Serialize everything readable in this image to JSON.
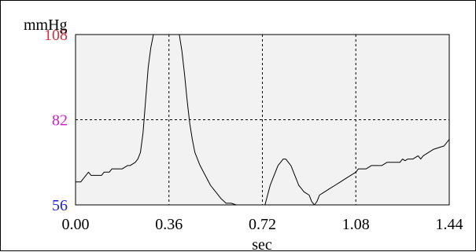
{
  "chart_data": {
    "type": "line",
    "ylabel": "mmHg",
    "xlabel": "sec",
    "xlim": [
      0,
      1.44
    ],
    "ylim": [
      56,
      108
    ],
    "x_ticks": [
      {
        "value": 0,
        "label": "0.00"
      },
      {
        "value": 0.36,
        "label": "0.36"
      },
      {
        "value": 0.72,
        "label": "0.72"
      },
      {
        "value": 1.08,
        "label": "1.08"
      },
      {
        "value": 1.44,
        "label": "1.44"
      }
    ],
    "y_ticks": [
      {
        "value": 56,
        "label": "56",
        "color": "#2020d0"
      },
      {
        "value": 82,
        "label": "82",
        "color": "#d020d0"
      },
      {
        "value": 108,
        "label": "108",
        "color": "#d03040"
      }
    ],
    "grid": true,
    "grid_x": [
      0.36,
      0.72,
      1.08
    ],
    "grid_y": [
      82
    ],
    "colors": {
      "plot_background": "#f2f2f2",
      "line": "#000000",
      "grid": "#000000"
    },
    "series": [
      {
        "x": [
          0.0,
          0.02,
          0.03,
          0.04,
          0.05,
          0.06,
          0.07,
          0.08,
          0.1,
          0.11,
          0.13,
          0.14,
          0.16,
          0.18,
          0.2,
          0.21,
          0.23,
          0.24,
          0.25,
          0.26,
          0.27,
          0.28,
          0.29,
          0.3,
          0.31,
          0.32,
          0.33,
          0.35,
          0.36,
          0.37,
          0.39,
          0.4,
          0.41,
          0.42,
          0.43,
          0.44,
          0.45,
          0.46,
          0.48,
          0.5,
          0.52,
          0.54,
          0.56,
          0.58,
          0.6,
          0.62,
          0.64,
          0.66,
          0.68,
          0.7,
          0.72,
          0.73,
          0.74,
          0.75,
          0.76,
          0.77,
          0.78,
          0.79,
          0.8,
          0.81,
          0.82,
          0.83,
          0.84,
          0.85,
          0.86,
          0.87,
          0.88,
          0.89,
          0.9,
          0.91,
          0.92,
          0.93,
          0.94,
          0.96,
          0.98,
          1.0,
          1.02,
          1.04,
          1.06,
          1.08,
          1.09,
          1.12,
          1.14,
          1.16,
          1.18,
          1.2,
          1.22,
          1.24,
          1.25,
          1.26,
          1.27,
          1.28,
          1.3,
          1.32,
          1.33,
          1.34,
          1.36,
          1.38,
          1.4,
          1.42,
          1.44
        ],
        "y": [
          63.0,
          63.0,
          64.0,
          65.0,
          66.0,
          65.0,
          65.0,
          65.0,
          65.0,
          66.0,
          66.0,
          67.0,
          67.0,
          67.0,
          68.0,
          68.0,
          69.0,
          70.0,
          72.0,
          78.0,
          88.0,
          98.0,
          104.0,
          108.0,
          108.0,
          108.0,
          108.0,
          108.0,
          108.0,
          108.0,
          108.0,
          108.0,
          103.0,
          96.0,
          88.0,
          81.0,
          76.0,
          72.0,
          68.0,
          65.0,
          62.0,
          60.0,
          58.0,
          56.5,
          56.5,
          56.0,
          56.0,
          56.0,
          56.0,
          56.0,
          56.0,
          56.0,
          59.0,
          62.0,
          64.0,
          66.0,
          68.0,
          69.0,
          70.0,
          70.0,
          69.0,
          68.0,
          66.0,
          64.0,
          62.0,
          61.0,
          60.0,
          59.5,
          59.0,
          57.0,
          56.0,
          57.0,
          59.0,
          60.0,
          61.0,
          62.0,
          63.0,
          64.0,
          65.0,
          66.0,
          67.0,
          67.0,
          68.0,
          68.0,
          68.0,
          69.0,
          69.0,
          69.0,
          69.0,
          70.0,
          69.5,
          70.0,
          70.0,
          71.0,
          70.0,
          71.0,
          72.0,
          73.0,
          73.5,
          74.0,
          76.0
        ]
      }
    ]
  }
}
